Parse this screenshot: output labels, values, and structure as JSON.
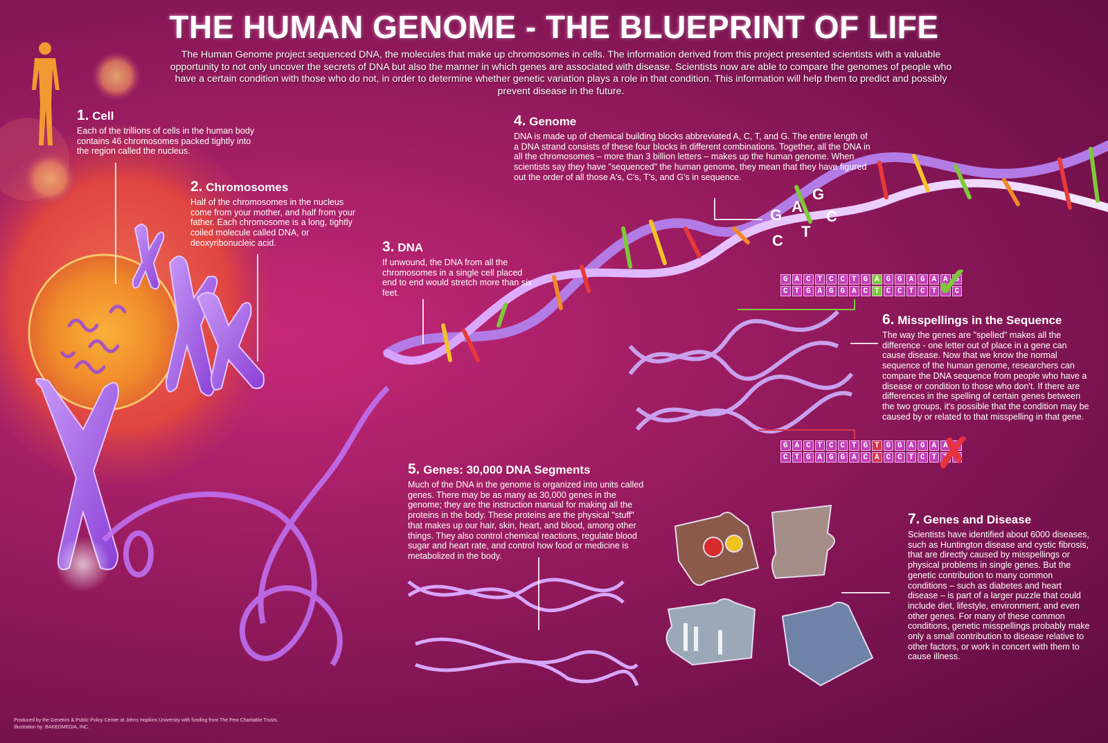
{
  "title": "THE HUMAN GENOME - THE BLUEPRINT OF LIFE",
  "intro": "The Human Genome project sequenced DNA, the molecules that make up chromosomes in cells.  The information derived from this project presented scientists with a valuable opportunity to not only uncover the secrets of  DNA but also the manner in which genes are associated with disease.  Scientists now are able to compare the genomes of people who have a certain condition with those who do not, in order to determine whether genetic variation plays a role in that condition.  This information will help them to predict and possibly prevent disease in the future.",
  "sections": {
    "cell": {
      "num": "1.",
      "heading": "Cell",
      "text": "Each of the trillions of cells in the human body contains 46 chromosomes packed tightly into the region called the nucleus."
    },
    "chromosomes": {
      "num": "2.",
      "heading": "Chromosomes",
      "text": "Half of the chromosomes in the nucleus come from your mother, and half from your father.  Each chromosome is a long, tightly coiled molecule called DNA, or deoxyribonucleic acid."
    },
    "dna": {
      "num": "3.",
      "heading": "DNA",
      "text": "If unwound, the DNA from all the chromosomes in a single cell placed end to end would stretch more than six feet."
    },
    "genome": {
      "num": "4.",
      "heading": "Genome",
      "text": "DNA is made up of chemical building blocks abbreviated A, C, T, and G. The entire length of a DNA strand consists of these four blocks in different combinations. Together, all the DNA in all the chromosomes – more than 3 billion letters – makes up the human genome.  When scientists say they have \"sequenced\" the human genome, they mean that they have figured out the order of all those A's, C's, T's, and G's in sequence."
    },
    "genes": {
      "num": "5.",
      "heading": "Genes: 30,000 DNA Segments",
      "text": "Much of the DNA in the genome is organized into units called genes. There may be as many as 30,000 genes in the genome; they are the instruction manual for making all the proteins in the body.  These proteins are the physical \"stuff\" that makes up our hair, skin, heart, and blood, among other things.  They also control chemical reactions, regulate blood sugar and heart rate, and control how food or medicine is metabolized in the body."
    },
    "misspellings": {
      "num": "6.",
      "heading": "Misspellings in the Sequence",
      "text": "The way the genes are \"spelled\" makes all the difference - one letter out of place in a gene can cause disease.  Now that we know the normal sequence of the human genome, researchers can compare the DNA sequence from people who have a disease or condition to those who don't.  If there are differences in the spelling of certain genes between the two groups, it's possible that the condition may be caused by or related to that misspelling in that gene."
    },
    "disease": {
      "num": "7.",
      "heading": "Genes and Disease",
      "text": "Scientists have identified about 6000 diseases, such as Huntington disease and cystic fibrosis, that are directly caused by misspellings or physical problems in single genes. But the genetic contribution to many common conditions – such as diabetes and heart disease – is part of a larger puzzle that could include diet, lifestyle, environment, and even other genes. For many of these common conditions, genetic misspellings probably make only a small contribution to disease relative to other factors, or work in concert with them to cause illness."
    }
  },
  "helix_letters": {
    "g1": "G",
    "a": "A",
    "g2": "G",
    "c1": "C",
    "t": "T",
    "c2": "C"
  },
  "sequences": {
    "correct_top": [
      "G",
      "A",
      "C",
      "T",
      "C",
      "C",
      "T",
      "G",
      "A",
      "G",
      "G",
      "A",
      "G",
      "A",
      "A",
      "G"
    ],
    "correct_bottom": [
      "C",
      "T",
      "G",
      "A",
      "G",
      "G",
      "A",
      "C",
      "T",
      "C",
      "C",
      "T",
      "C",
      "T",
      "T",
      "C"
    ],
    "wrong_top": [
      "G",
      "A",
      "C",
      "T",
      "C",
      "C",
      "T",
      "G",
      "T",
      "G",
      "G",
      "A",
      "G",
      "A",
      "A",
      "G"
    ],
    "wrong_bottom": [
      "C",
      "T",
      "G",
      "A",
      "G",
      "G",
      "A",
      "C",
      "A",
      "C",
      "C",
      "T",
      "C",
      "T",
      "T",
      "C"
    ],
    "highlight_index": 8,
    "correct_mark": "✓",
    "wrong_mark": "✗",
    "colors": {
      "cell": "#c23eb7",
      "ok": "#7ec83a",
      "bad": "#d8364e"
    }
  },
  "footer": {
    "line1": "Produced by the Genetics & Public Policy Center at Johns Hopkins University with funding from The Pew Charitable Trusts.",
    "line2": "Illustration by: BAKEDMEDIA, INC."
  }
}
